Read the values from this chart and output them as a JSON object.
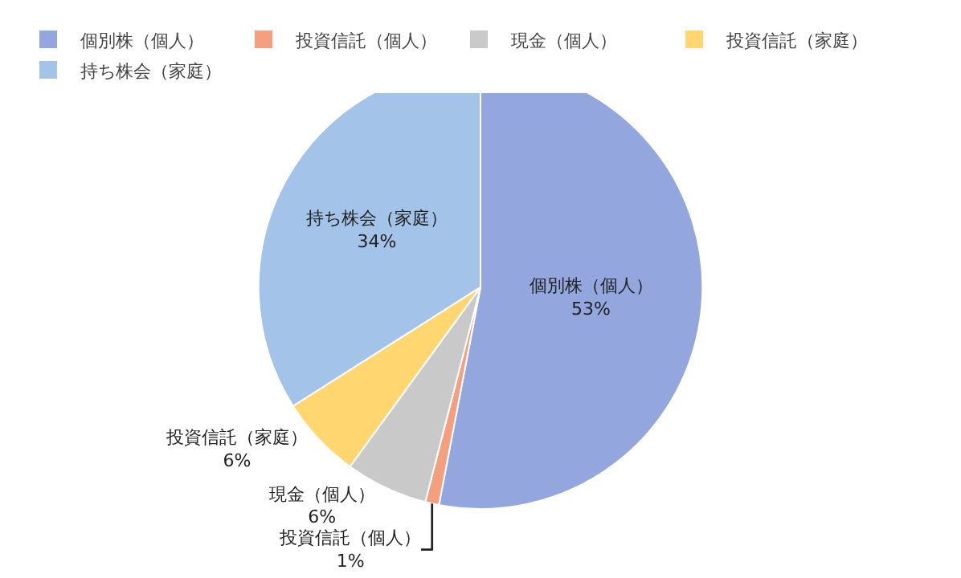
{
  "chart_data": {
    "type": "pie",
    "categories": [
      "個別株（個人）",
      "投資信託（個人）",
      "現金（個人）",
      "投資信託（家庭）",
      "持ち株会（家庭）"
    ],
    "values": [
      53,
      1,
      6,
      6,
      34
    ],
    "value_labels": [
      "53%",
      "1%",
      "6%",
      "6%",
      "34%"
    ],
    "colors": [
      "#94a6de",
      "#f4a07e",
      "#c9c9c9",
      "#ffd670",
      "#a3c4e8"
    ],
    "legend": "top left"
  }
}
